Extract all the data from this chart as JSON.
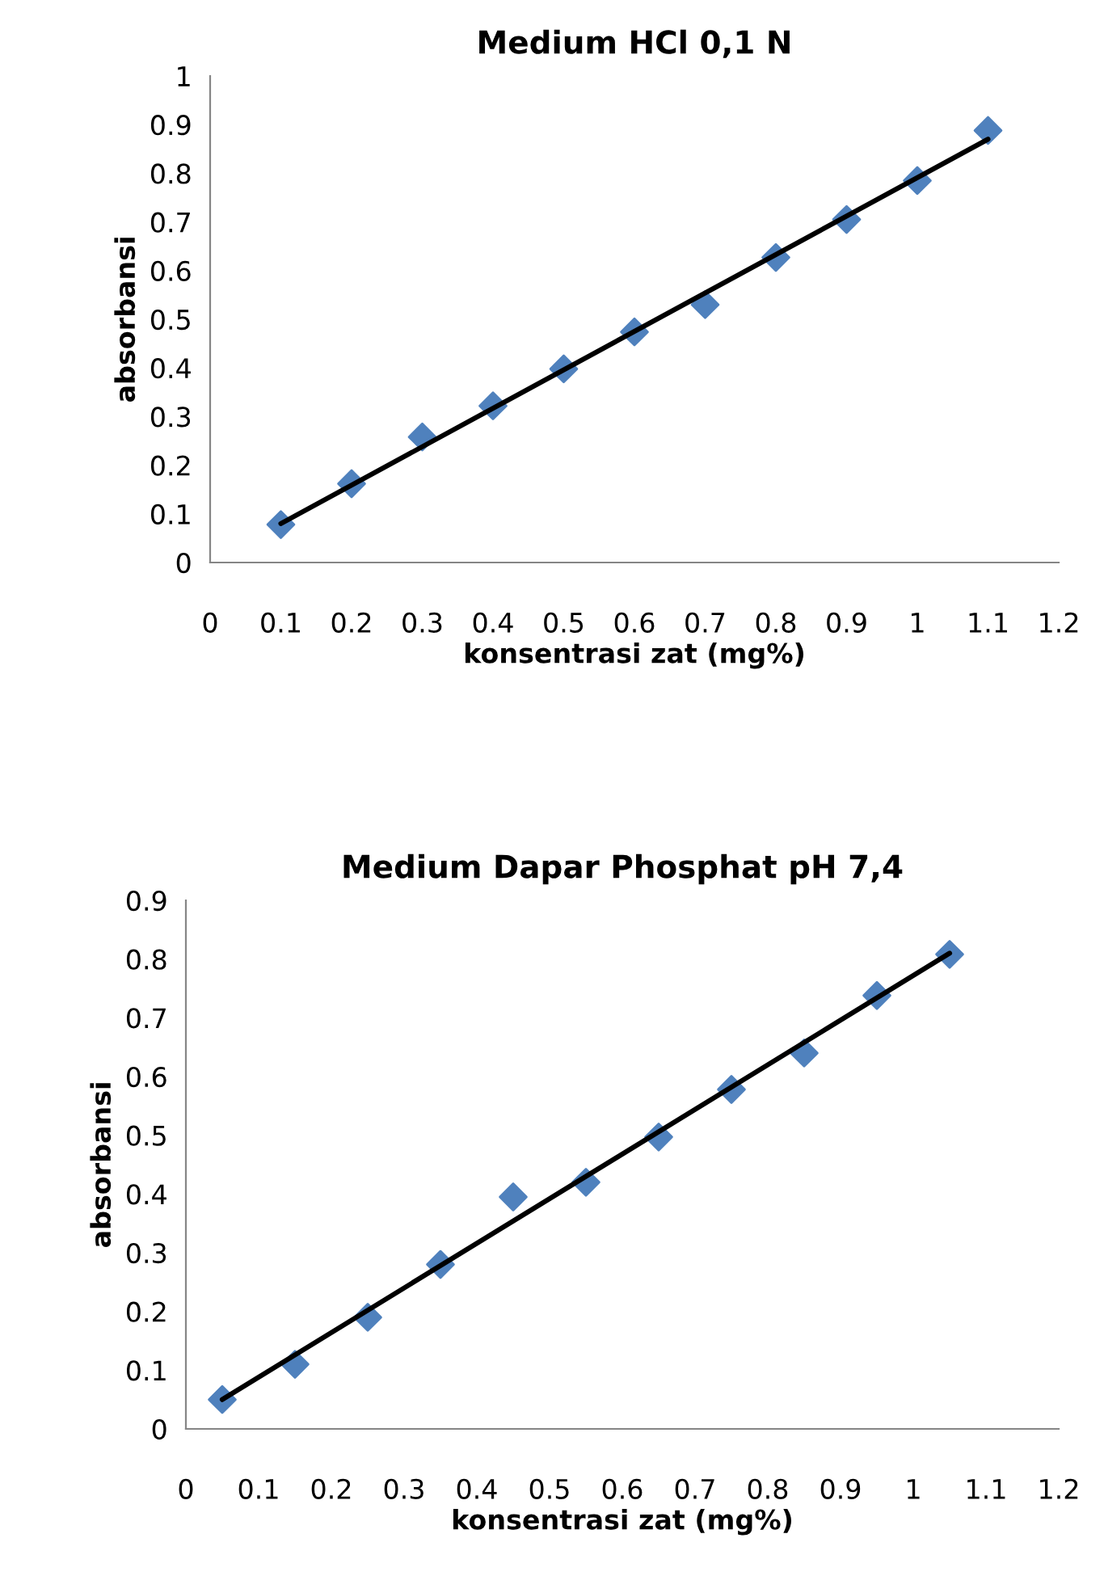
{
  "chart_data": [
    {
      "type": "scatter",
      "title": "Medium HCl 0,1 N",
      "xlabel": "konsentrasi zat (mg%)",
      "ylabel": "absorbansi",
      "xlim": [
        0,
        1.2
      ],
      "xticks": [
        0,
        0.1,
        0.2,
        0.3,
        0.4,
        0.5,
        0.6,
        0.7,
        0.8,
        0.9,
        1,
        1.1,
        1.2
      ],
      "ylim": [
        0,
        1
      ],
      "yticks": [
        0,
        0.1,
        0.2,
        0.3,
        0.4,
        0.5,
        0.6,
        0.7,
        0.8,
        0.9,
        1
      ],
      "grid": false,
      "legend": false,
      "series": [
        {
          "color": "#4f81bd",
          "marker": "diamond",
          "x": [
            0.1,
            0.2,
            0.3,
            0.4,
            0.5,
            0.6,
            0.7,
            0.8,
            0.9,
            1,
            1.1
          ],
          "values": [
            0.078,
            0.162,
            0.258,
            0.322,
            0.398,
            0.474,
            0.53,
            0.627,
            0.705,
            0.785,
            0.888
          ]
        },
        {
          "type": "line",
          "color": "#000000",
          "marker": "none",
          "line_style": "solid",
          "x": [
            0.1,
            1.1
          ],
          "values": [
            0.08,
            0.87
          ]
        }
      ]
    },
    {
      "type": "scatter",
      "title": "Medium Dapar Phosphat pH 7,4",
      "xlabel": "konsentrasi zat (mg%)",
      "ylabel": "absorbansi",
      "xlim": [
        0,
        1.2
      ],
      "xticks": [
        0,
        0.1,
        0.2,
        0.3,
        0.4,
        0.5,
        0.6,
        0.7,
        0.8,
        0.9,
        1,
        1.1,
        1.2
      ],
      "ylim": [
        0,
        0.9
      ],
      "yticks": [
        0,
        0.1,
        0.2,
        0.3,
        0.4,
        0.5,
        0.6,
        0.7,
        0.8,
        0.9
      ],
      "grid": false,
      "legend": false,
      "series": [
        {
          "color": "#4f81bd",
          "marker": "diamond",
          "x": [
            0.05,
            0.15,
            0.25,
            0.35,
            0.45,
            0.55,
            0.65,
            0.75,
            0.85,
            0.95,
            1.05
          ],
          "values": [
            0.05,
            0.11,
            0.19,
            0.28,
            0.395,
            0.42,
            0.497,
            0.578,
            0.64,
            0.738,
            0.808
          ]
        },
        {
          "type": "line",
          "color": "#000000",
          "marker": "none",
          "line_style": "solid",
          "x": [
            0.05,
            1.05
          ],
          "values": [
            0.05,
            0.81
          ]
        }
      ]
    }
  ]
}
